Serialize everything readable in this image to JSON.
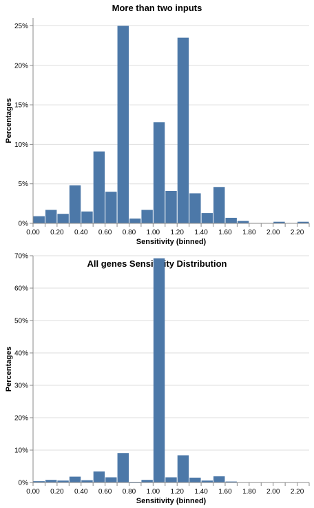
{
  "chart_data": [
    {
      "type": "bar",
      "title": "More than two inputs",
      "xlabel": "Sensitivity (binned)",
      "ylabel": "Percentages",
      "bin_start": 0.0,
      "bin_step": 0.1,
      "xlim": [
        0,
        2.3
      ],
      "ylim": [
        0,
        0.26
      ],
      "x_ticks": [
        "0.00",
        "0.20",
        "0.40",
        "0.60",
        "0.80",
        "1.00",
        "1.20",
        "1.40",
        "1.60",
        "1.80",
        "2.00",
        "2.20"
      ],
      "y_ticks": [
        "0%",
        "5%",
        "10%",
        "15%",
        "20%",
        "25%"
      ],
      "values": [
        0.009,
        0.017,
        0.012,
        0.048,
        0.015,
        0.091,
        0.04,
        0.25,
        0.006,
        0.017,
        0.128,
        0.041,
        0.235,
        0.038,
        0.013,
        0.046,
        0.007,
        0.003,
        0,
        0,
        0.002,
        0,
        0.002
      ],
      "color": "#4c78a8",
      "grid": true
    },
    {
      "type": "bar",
      "title": "All genes Sensitivity Distribution",
      "xlabel": "Sensitivity (binned)",
      "ylabel": "Percentages",
      "bin_start": 0.0,
      "bin_step": 0.1,
      "xlim": [
        0,
        2.3
      ],
      "ylim": [
        0,
        0.7
      ],
      "x_ticks": [
        "0.00",
        "0.20",
        "0.40",
        "0.60",
        "0.80",
        "1.00",
        "1.20",
        "1.40",
        "1.60",
        "1.80",
        "2.00",
        "2.20"
      ],
      "y_ticks": [
        "0%",
        "10%",
        "20%",
        "30%",
        "40%",
        "50%",
        "60%",
        "70%"
      ],
      "values": [
        0.004,
        0.008,
        0.006,
        0.018,
        0.007,
        0.034,
        0.016,
        0.091,
        0.002,
        0.008,
        0.692,
        0.016,
        0.084,
        0.015,
        0.006,
        0.019,
        0.003,
        0.001,
        0.0005,
        0.0005,
        0.0005,
        0.0005,
        0.0005
      ],
      "color": "#4c78a8",
      "grid": true
    }
  ]
}
